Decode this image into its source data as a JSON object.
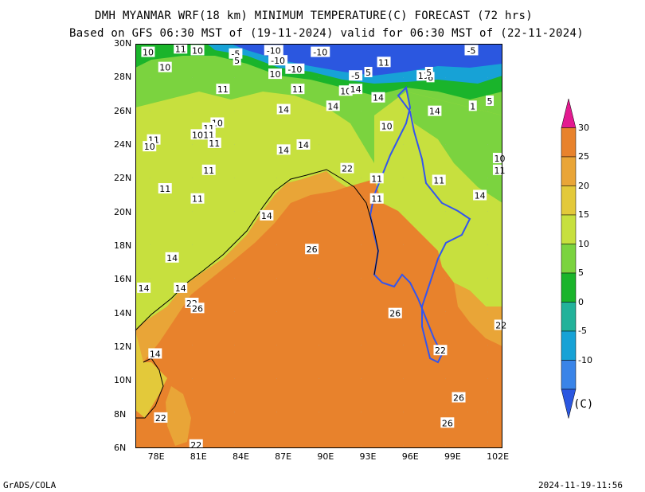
{
  "header": {
    "title_line1": "DMH MYANMAR WRF(18 km) MINIMUM TEMPERATURE(C) FORECAST (72 hrs)",
    "title_line2": "Based on GFS 06:30 MST of (19-11-2024) valid for 06:30 MST of (22-11-2024)"
  },
  "map": {
    "lat_labels": [
      "30N",
      "28N",
      "26N",
      "24N",
      "22N",
      "20N",
      "18N",
      "16N",
      "14N",
      "12N",
      "10N",
      "8N",
      "6N"
    ],
    "lon_labels": [
      "78E",
      "81E",
      "84E",
      "87E",
      "90E",
      "93E",
      "96E",
      "99E",
      "102E"
    ],
    "contour_labels": [
      {
        "t": "10",
        "lon": 77.4,
        "lat": 29.5
      },
      {
        "t": "10",
        "lon": 80.9,
        "lat": 29.6
      },
      {
        "t": "-5",
        "lon": 83.6,
        "lat": 29.4
      },
      {
        "t": "5",
        "lon": 83.7,
        "lat": 29.0
      },
      {
        "t": "-10",
        "lon": 86.3,
        "lat": 29.6
      },
      {
        "t": "-10",
        "lon": 86.6,
        "lat": 29.0
      },
      {
        "t": "-10",
        "lon": 89.6,
        "lat": 29.5
      },
      {
        "t": "-10",
        "lon": 87.8,
        "lat": 28.5
      },
      {
        "t": "10",
        "lon": 86.4,
        "lat": 28.2
      },
      {
        "t": "10",
        "lon": 78.6,
        "lat": 28.6
      },
      {
        "t": "11",
        "lon": 79.7,
        "lat": 29.7
      },
      {
        "t": "11",
        "lon": 82.7,
        "lat": 27.3
      },
      {
        "t": "11",
        "lon": 88.0,
        "lat": 27.3
      },
      {
        "t": "10",
        "lon": 91.4,
        "lat": 27.2
      },
      {
        "t": "-5",
        "lon": 92.1,
        "lat": 28.1
      },
      {
        "t": "5",
        "lon": 93.0,
        "lat": 28.3
      },
      {
        "t": "14",
        "lon": 92.1,
        "lat": 27.3
      },
      {
        "t": "14",
        "lon": 93.7,
        "lat": 26.8
      },
      {
        "t": "11",
        "lon": 94.1,
        "lat": 28.9
      },
      {
        "t": "14",
        "lon": 90.5,
        "lat": 26.3
      },
      {
        "t": "14",
        "lon": 87.0,
        "lat": 26.1
      },
      {
        "t": "-5",
        "lon": 100.3,
        "lat": 29.6
      },
      {
        "t": "11",
        "lon": 96.9,
        "lat": 28.1
      },
      {
        "t": "6",
        "lon": 97.4,
        "lat": 28.0
      },
      {
        "t": "5",
        "lon": 97.3,
        "lat": 28.3
      },
      {
        "t": "5",
        "lon": 101.6,
        "lat": 26.6
      },
      {
        "t": "1",
        "lon": 100.4,
        "lat": 26.3
      },
      {
        "t": "14",
        "lon": 97.7,
        "lat": 26.0
      },
      {
        "t": "10",
        "lon": 82.3,
        "lat": 25.3
      },
      {
        "t": "11",
        "lon": 81.7,
        "lat": 25.0
      },
      {
        "t": "11",
        "lon": 81.7,
        "lat": 24.6
      },
      {
        "t": "10",
        "lon": 80.9,
        "lat": 24.6
      },
      {
        "t": "11",
        "lon": 82.1,
        "lat": 24.1
      },
      {
        "t": "11",
        "lon": 77.8,
        "lat": 24.3
      },
      {
        "t": "10",
        "lon": 77.5,
        "lat": 23.9
      },
      {
        "t": "14",
        "lon": 87.0,
        "lat": 23.7
      },
      {
        "t": "14",
        "lon": 88.4,
        "lat": 24.0
      },
      {
        "t": "10",
        "lon": 94.3,
        "lat": 25.1
      },
      {
        "t": "11",
        "lon": 81.7,
        "lat": 22.5
      },
      {
        "t": "22",
        "lon": 91.5,
        "lat": 22.6
      },
      {
        "t": "11",
        "lon": 93.6,
        "lat": 22.0
      },
      {
        "t": "11",
        "lon": 98.0,
        "lat": 21.9
      },
      {
        "t": "10",
        "lon": 102.3,
        "lat": 23.2
      },
      {
        "t": "11",
        "lon": 102.3,
        "lat": 22.5
      },
      {
        "t": "14",
        "lon": 100.9,
        "lat": 21.0
      },
      {
        "t": "11",
        "lon": 78.6,
        "lat": 21.4
      },
      {
        "t": "11",
        "lon": 80.9,
        "lat": 20.8
      },
      {
        "t": "11",
        "lon": 93.6,
        "lat": 20.8
      },
      {
        "t": "14",
        "lon": 85.8,
        "lat": 19.8
      },
      {
        "t": "26",
        "lon": 89.0,
        "lat": 17.8
      },
      {
        "t": "14",
        "lon": 79.1,
        "lat": 17.3
      },
      {
        "t": "14",
        "lon": 79.7,
        "lat": 15.5
      },
      {
        "t": "14",
        "lon": 77.1,
        "lat": 15.5
      },
      {
        "t": "22",
        "lon": 80.5,
        "lat": 14.6
      },
      {
        "t": "26",
        "lon": 80.9,
        "lat": 14.3
      },
      {
        "t": "26",
        "lon": 94.9,
        "lat": 14.0
      },
      {
        "t": "14",
        "lon": 77.9,
        "lat": 11.6
      },
      {
        "t": "22",
        "lon": 102.4,
        "lat": 13.3
      },
      {
        "t": "22",
        "lon": 98.1,
        "lat": 11.8
      },
      {
        "t": "26",
        "lon": 99.4,
        "lat": 9.0
      },
      {
        "t": "22",
        "lon": 78.3,
        "lat": 7.8
      },
      {
        "t": "26",
        "lon": 98.6,
        "lat": 7.5
      },
      {
        "t": "22",
        "lon": 80.8,
        "lat": 6.2
      }
    ]
  },
  "colorbar": {
    "labels": [
      "30",
      "25",
      "20",
      "15",
      "10",
      "5",
      "0",
      "-5",
      "-10"
    ],
    "colors": [
      "#e31a90",
      "#e8822c",
      "#e9a537",
      "#e3c93a",
      "#c7e03e",
      "#7bd33f",
      "#1ab42b",
      "#22b29a",
      "#17a2d6",
      "#3a84e8",
      "#2b57e0"
    ],
    "unit": "(C)"
  },
  "footer": {
    "left": "GrADS/COLA",
    "right": "2024-11-19-11:56"
  }
}
